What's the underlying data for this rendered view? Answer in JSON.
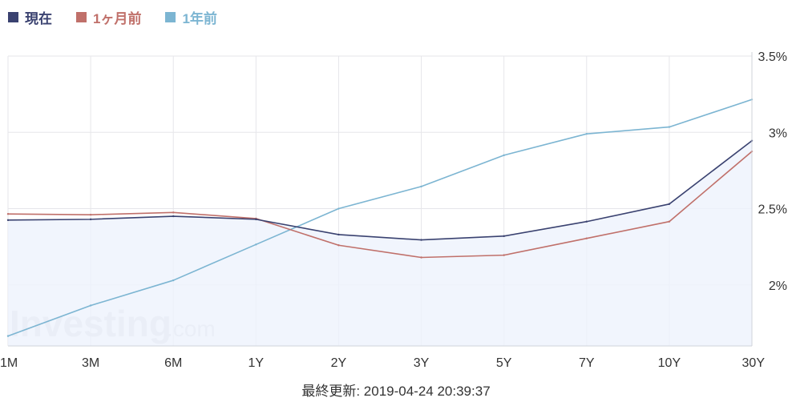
{
  "chart_data": {
    "type": "line",
    "categories": [
      "1M",
      "3M",
      "6M",
      "1Y",
      "2Y",
      "3Y",
      "5Y",
      "7Y",
      "10Y",
      "30Y"
    ],
    "series": [
      {
        "name": "現在",
        "color": "#3a4270",
        "values": [
          2.425,
          2.43,
          2.45,
          2.43,
          2.33,
          2.295,
          2.32,
          2.415,
          2.53,
          2.945
        ]
      },
      {
        "name": "1ヶ月前",
        "color": "#c0706a",
        "values": [
          2.465,
          2.46,
          2.475,
          2.435,
          2.26,
          2.18,
          2.195,
          2.305,
          2.415,
          2.875
        ]
      },
      {
        "name": "1年前",
        "color": "#7cb5d2",
        "values": [
          1.665,
          1.865,
          2.03,
          2.265,
          2.5,
          2.645,
          2.85,
          2.99,
          3.035,
          3.215
        ]
      }
    ],
    "y_ticks": [
      {
        "value": 2.0,
        "label": "2%"
      },
      {
        "value": 2.5,
        "label": "2.5%"
      },
      {
        "value": 3.0,
        "label": "3%"
      },
      {
        "value": 3.5,
        "label": "3.5%"
      }
    ],
    "ylim": [
      1.6,
      3.5
    ],
    "y_axis_side": "right",
    "grid": true,
    "legend": "top-left",
    "area_fill_series": "現在",
    "area_fill_color": "#eef3fc"
  },
  "watermark": {
    "text": "Investing",
    "suffix": ".com"
  },
  "footer": {
    "updated": "最終更新: 2019-04-24 20:39:37"
  }
}
